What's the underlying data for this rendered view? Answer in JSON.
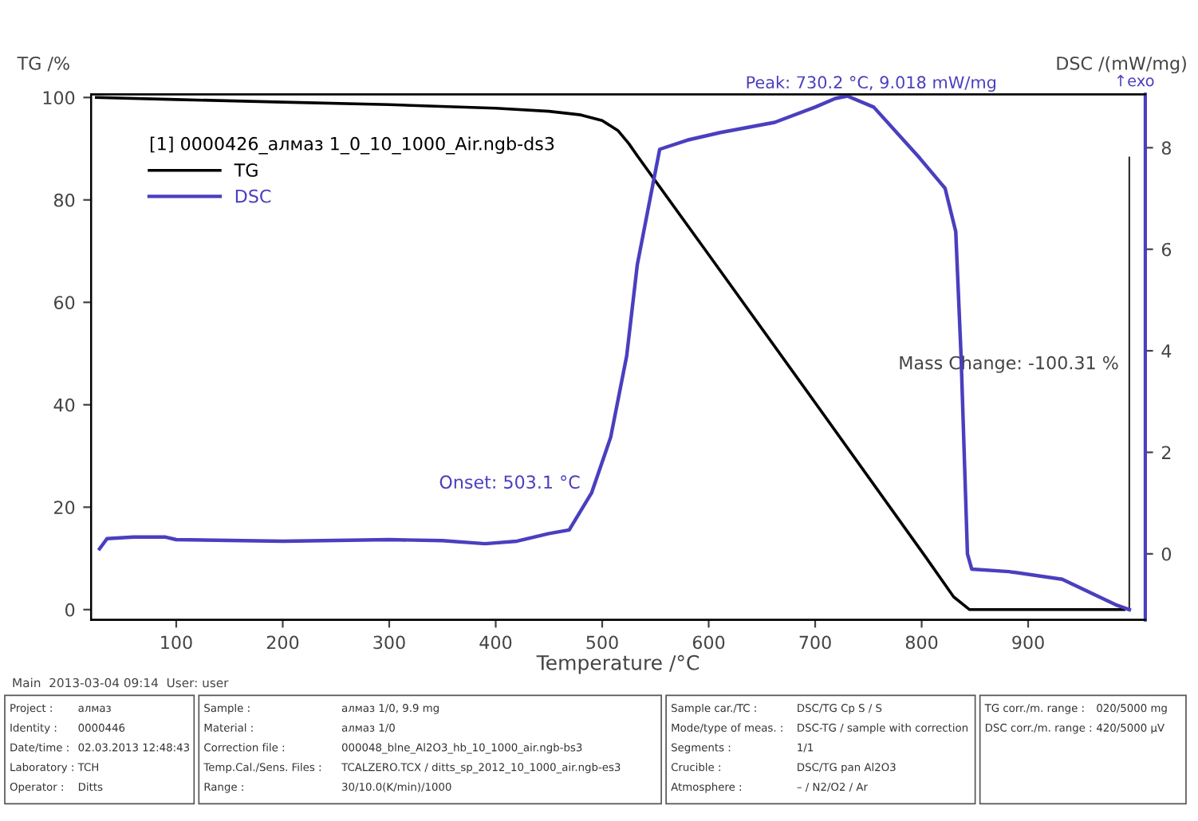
{
  "chart_data": {
    "type": "line",
    "xlabel": "Temperature /°C",
    "ylabel": "TG /%",
    "y2label": "DSC /(mW/mg)",
    "legend_title": "[1] 0000426_алмаз 1_0_10_1000_Air.ngb-ds3",
    "legend": "top left",
    "grid": false,
    "marker": "none",
    "line_style": "solid",
    "xlim": [
      20,
      1010
    ],
    "xticks": [
      100,
      200,
      300,
      400,
      500,
      600,
      700,
      800,
      900
    ],
    "ylim": [
      -2,
      100.6
    ],
    "yticks": [
      0,
      20,
      40,
      60,
      80,
      100
    ],
    "y2lim": [
      -1.3,
      9.05
    ],
    "y2ticks": [
      0,
      2,
      4,
      6,
      8
    ],
    "ref_lines": [
      {
        "axis": "x",
        "value": 995,
        "color": "#333333"
      }
    ],
    "series": [
      {
        "name": "TG",
        "color": "#000000",
        "x": [
          25,
          100,
          200,
          300,
          400,
          450,
          480,
          500,
          515,
          525,
          533,
          600,
          700,
          803,
          830,
          845,
          900,
          990
        ],
        "values": [
          100,
          99.6,
          99.1,
          98.6,
          97.9,
          97.3,
          96.6,
          95.5,
          93.5,
          91,
          88.6,
          69.3,
          40.4,
          10.5,
          2.5,
          0,
          0,
          0
        ]
      },
      {
        "name": "DSC",
        "color": "#4a3fbf",
        "axis": "y2",
        "x": [
          28,
          35,
          60,
          90,
          100,
          200,
          300,
          350,
          390,
          420,
          450,
          469,
          490,
          508,
          523,
          533,
          554,
          580,
          611,
          662,
          700,
          719,
          730.2,
          755,
          798,
          818,
          822,
          832,
          837,
          843,
          847,
          882,
          932,
          982,
          995
        ],
        "values": [
          0.1,
          0.3,
          0.33,
          0.33,
          0.28,
          0.25,
          0.28,
          0.26,
          0.2,
          0.25,
          0.4,
          0.47,
          1.2,
          2.3,
          3.9,
          5.7,
          7.97,
          8.15,
          8.3,
          8.5,
          8.8,
          8.97,
          9.018,
          8.8,
          7.8,
          7.3,
          7.2,
          6.35,
          3.9,
          0,
          -0.3,
          -0.35,
          -0.5,
          -1.0,
          -1.1
        ]
      }
    ],
    "annotations": [
      "Onset: 503.1 °C",
      "Peak: 730.2 °C, 9.018 mW/mg",
      "Mass Change: -100.31 %",
      "↑exo",
      "Main  2013-03-04 09:14  User: user",
      "Project :",
      "алмаз",
      "Identity :",
      "0000446",
      "Date/time :",
      "02.03.2013 12:48:43",
      "Laboratory :",
      "TCH",
      "Operator :",
      "Ditts",
      "Sample :",
      "алмаз 1/0, 9.9 mg",
      "Material :",
      "алмаз 1/0",
      "Correction file :",
      "000048_blne_Al2O3_hb_10_1000_air.ngb-bs3",
      "Temp.Cal./Sens. Files :",
      "TCALZERO.TCX / ditts_sp_2012_10_1000_air.ngb-es3",
      "Range :",
      "30/10.0(K/min)/1000",
      "Sample car./TC :",
      "DSC/TG Cp S / S",
      "Mode/type of meas. :",
      "DSC-TG / sample with correction",
      "Segments :",
      "1/1",
      "Crucible :",
      "DSC/TG pan Al2O3",
      "Atmosphere :",
      "– / N2/O2 / Ar",
      "TG corr./m. range :",
      "020/5000 mg",
      "DSC corr./m. range :",
      "420/5000 µV"
    ]
  }
}
